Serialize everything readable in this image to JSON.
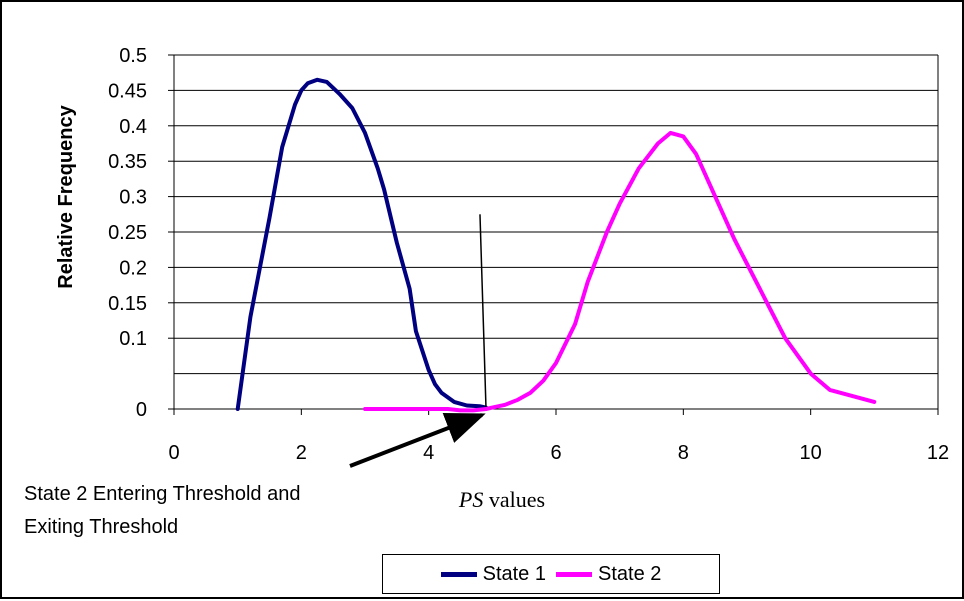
{
  "chart_data": {
    "type": "line",
    "ylabel": "Relative Frequency",
    "xlabel_italic": "PS",
    "xlabel_rest": " values",
    "xlim": [
      0,
      12
    ],
    "ylim": [
      0,
      0.5
    ],
    "x_ticks": [
      0,
      2,
      4,
      6,
      8,
      10,
      12
    ],
    "y_ticks": [
      0,
      0.1,
      0.15,
      0.2,
      0.25,
      0.3,
      0.35,
      0.4,
      0.45,
      0.5
    ],
    "y_tick_labels": [
      "0",
      "0.1",
      "0.15",
      "0.2",
      "0.25",
      "0.3",
      "0.35",
      "0.4",
      "0.45",
      "0.5"
    ],
    "y_gridlines": [
      0.05,
      0.1,
      0.15,
      0.2,
      0.25,
      0.3,
      0.35,
      0.4,
      0.45,
      0.5
    ],
    "grid": true,
    "legend_position": "bottom",
    "series": [
      {
        "name": "State 1",
        "color": "#000080",
        "points": [
          [
            1.0,
            0.0
          ],
          [
            1.2,
            0.13
          ],
          [
            1.5,
            0.27
          ],
          [
            1.7,
            0.37
          ],
          [
            1.9,
            0.43
          ],
          [
            2.0,
            0.45
          ],
          [
            2.1,
            0.46
          ],
          [
            2.25,
            0.465
          ],
          [
            2.4,
            0.462
          ],
          [
            2.6,
            0.445
          ],
          [
            2.8,
            0.425
          ],
          [
            3.0,
            0.39
          ],
          [
            3.2,
            0.34
          ],
          [
            3.3,
            0.31
          ],
          [
            3.5,
            0.235
          ],
          [
            3.7,
            0.17
          ],
          [
            3.8,
            0.11
          ],
          [
            4.0,
            0.055
          ],
          [
            4.1,
            0.035
          ],
          [
            4.2,
            0.023
          ],
          [
            4.4,
            0.01
          ],
          [
            4.6,
            0.005
          ],
          [
            4.8,
            0.004
          ],
          [
            4.9,
            0.002
          ]
        ]
      },
      {
        "name": "State 2",
        "color": "#FF00FF",
        "points": [
          [
            3.0,
            0.0
          ],
          [
            3.5,
            0.0
          ],
          [
            4.0,
            0.0
          ],
          [
            4.3,
            0.0
          ],
          [
            4.5,
            -0.002
          ],
          [
            4.7,
            -0.002
          ],
          [
            4.9,
            0.0
          ],
          [
            5.0,
            0.002
          ],
          [
            5.2,
            0.006
          ],
          [
            5.4,
            0.013
          ],
          [
            5.6,
            0.023
          ],
          [
            5.8,
            0.04
          ],
          [
            6.0,
            0.065
          ],
          [
            6.3,
            0.12
          ],
          [
            6.5,
            0.18
          ],
          [
            6.8,
            0.25
          ],
          [
            7.0,
            0.29
          ],
          [
            7.3,
            0.34
          ],
          [
            7.6,
            0.375
          ],
          [
            7.8,
            0.39
          ],
          [
            8.0,
            0.385
          ],
          [
            8.2,
            0.36
          ],
          [
            8.5,
            0.3
          ],
          [
            8.8,
            0.24
          ],
          [
            9.2,
            0.17
          ],
          [
            9.6,
            0.1
          ],
          [
            10.0,
            0.05
          ],
          [
            10.3,
            0.027
          ],
          [
            11.0,
            0.01
          ]
        ]
      }
    ],
    "annotation": {
      "line1": "State 2 Entering Threshold and",
      "line2": "Exiting Threshold",
      "target": [
        4.9,
        0.0
      ],
      "marker_x": 4.9,
      "marker_top_y": 0.275
    }
  }
}
